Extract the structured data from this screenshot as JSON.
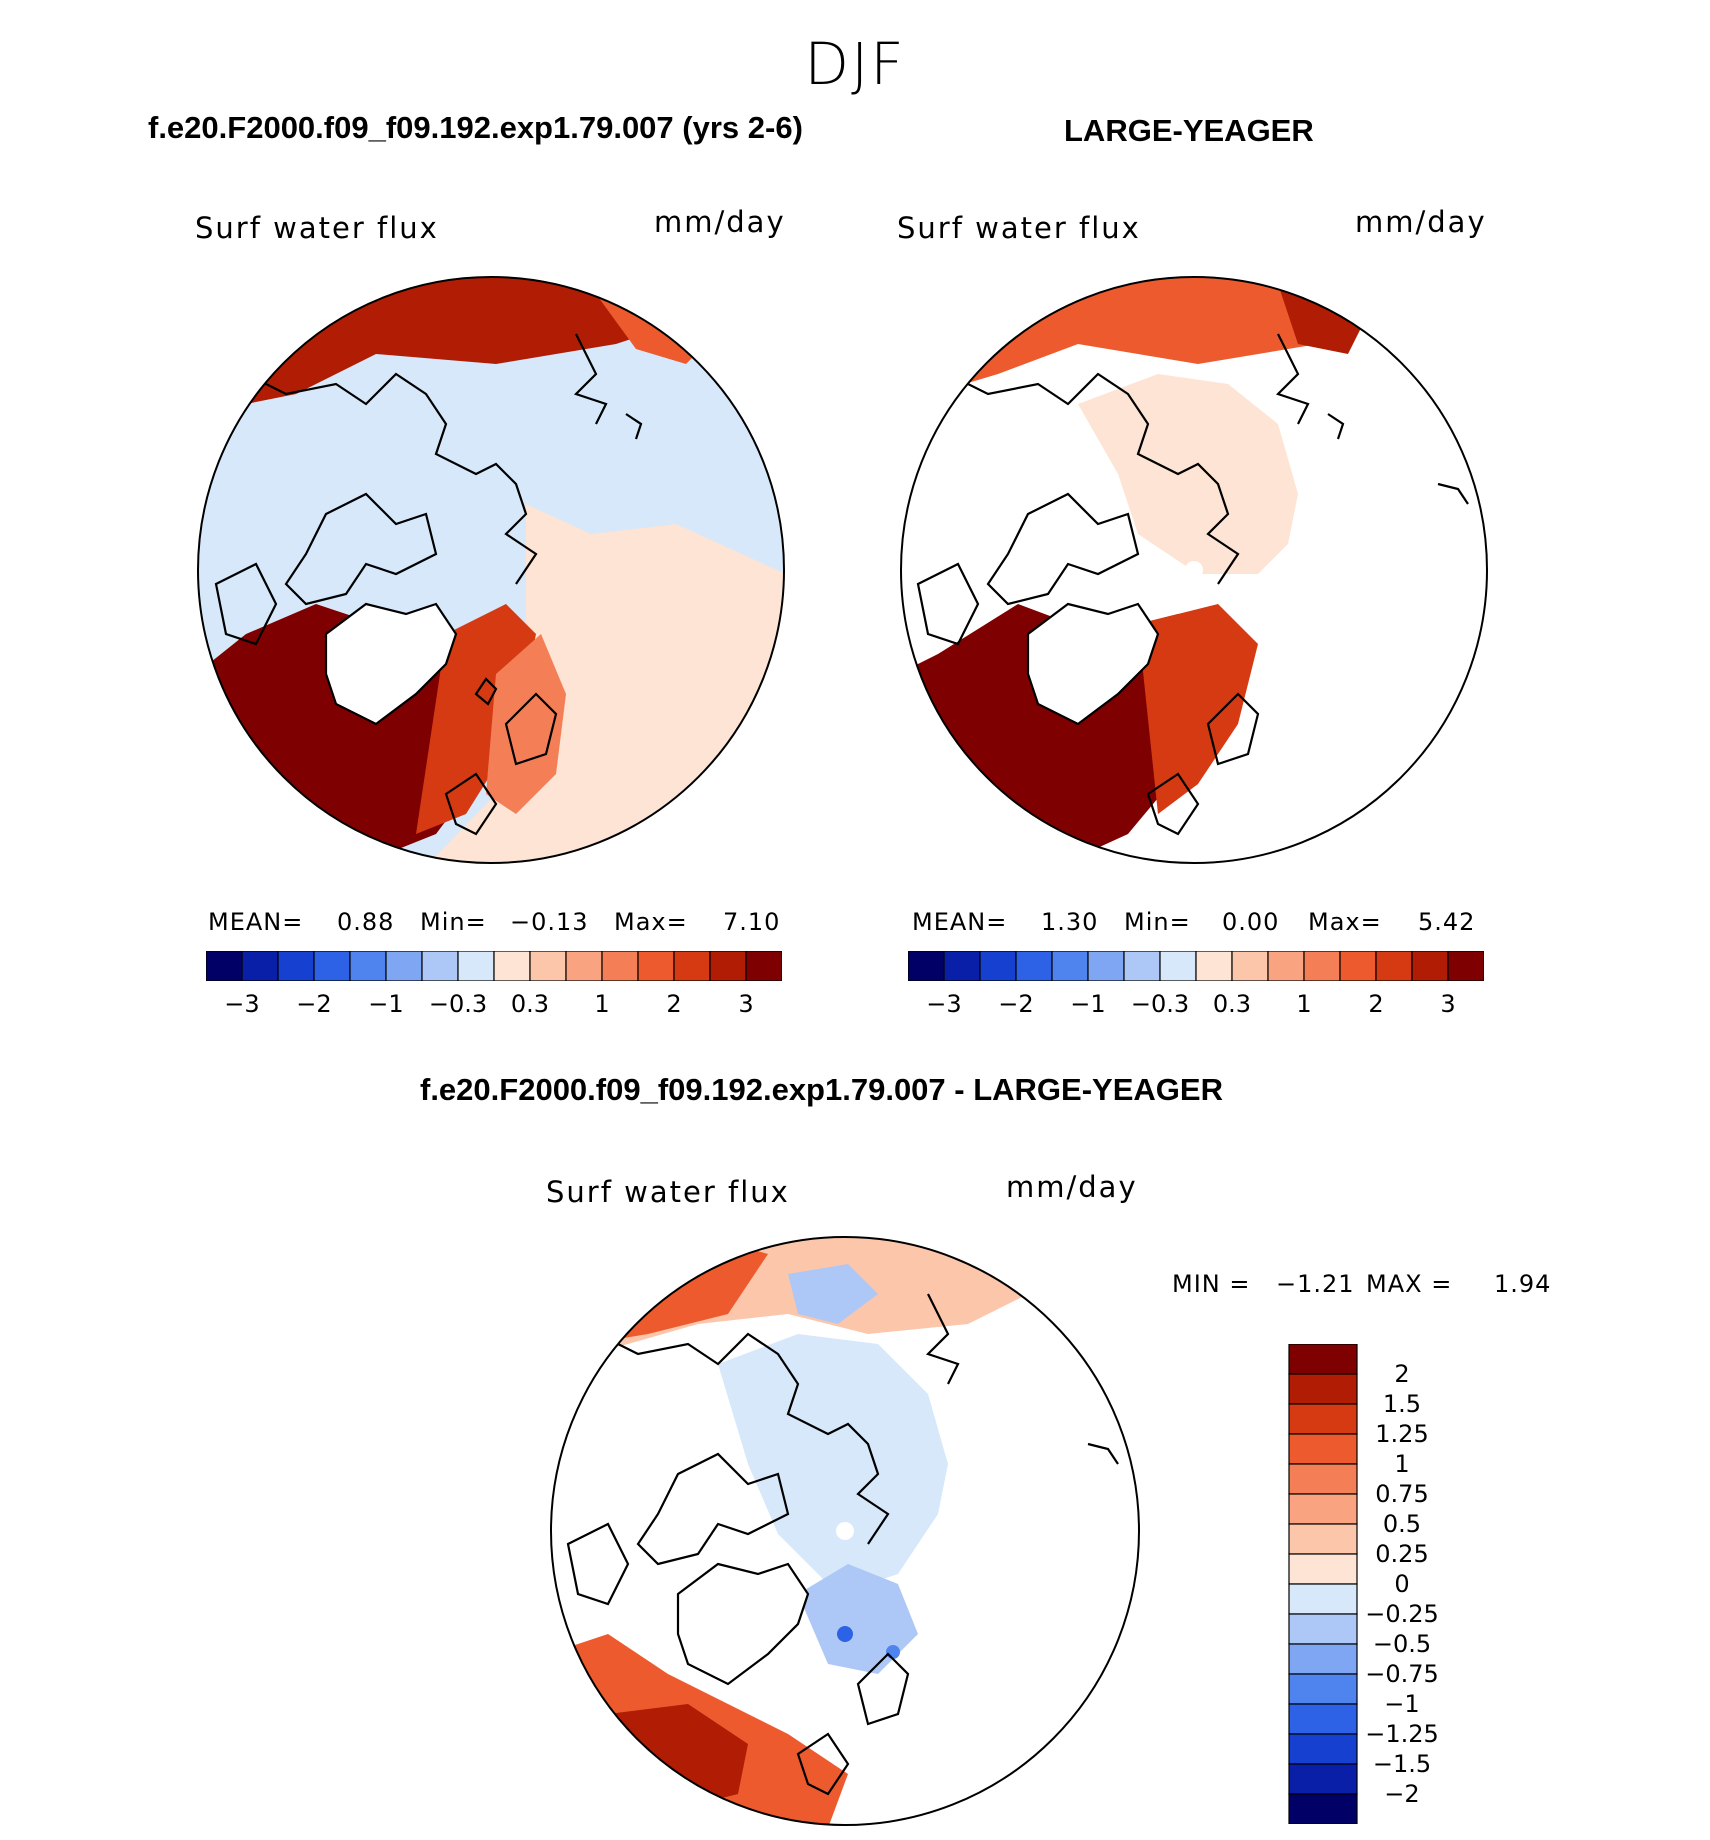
{
  "season": "DJF",
  "panels": [
    {
      "title": "f.e20.F2000.f09_f09.192.exp1.79.007 (yrs 2-6)",
      "variable": "Surf water flux",
      "units": "mm/day",
      "mean_label": "MEAN=",
      "mean": "0.88",
      "min_label": "Min=",
      "min": "−0.13",
      "max_label": "Max=",
      "max": "7.10"
    },
    {
      "title": "LARGE-YEAGER",
      "variable": "Surf water flux",
      "units": "mm/day",
      "mean_label": "MEAN=",
      "mean": "1.30",
      "min_label": "Min=",
      "min": "0.00",
      "max_label": "Max=",
      "max": "5.42"
    }
  ],
  "abs_colorbar": {
    "colors": [
      "#000066",
      "#0a1fa8",
      "#1540d0",
      "#2e62e6",
      "#4f84ee",
      "#7ea6f2",
      "#adc8f6",
      "#d6e8fa",
      "#fde4d4",
      "#fcc6aa",
      "#f9a380",
      "#f47e55",
      "#ec5a2e",
      "#d63a12",
      "#b01d04",
      "#7e0000"
    ],
    "ticks": [
      "−3",
      "−2",
      "−1",
      "−0.3",
      "0.3",
      "1",
      "2",
      "3"
    ]
  },
  "diff": {
    "title": "f.e20.F2000.f09_f09.192.exp1.79.007 - LARGE-YEAGER",
    "variable": "Surf water flux",
    "units": "mm/day",
    "min_label": "MIN =",
    "min": "−1.21",
    "max_label": "MAX =",
    "max": "1.94",
    "colors": [
      "#7e0000",
      "#b01d04",
      "#d63a12",
      "#ec5a2e",
      "#f47e55",
      "#f9a380",
      "#fcc6aa",
      "#fde4d4",
      "#d6e8fa",
      "#adc8f6",
      "#7ea6f2",
      "#4f84ee",
      "#2e62e6",
      "#1540d0",
      "#0a1fa8",
      "#000066"
    ],
    "ticks": [
      "2",
      "1.5",
      "1.25",
      "1",
      "0.75",
      "0.5",
      "0.25",
      "0",
      "−0.25",
      "−0.5",
      "−0.75",
      "−1",
      "−1.25",
      "−1.5",
      "−2"
    ]
  }
}
